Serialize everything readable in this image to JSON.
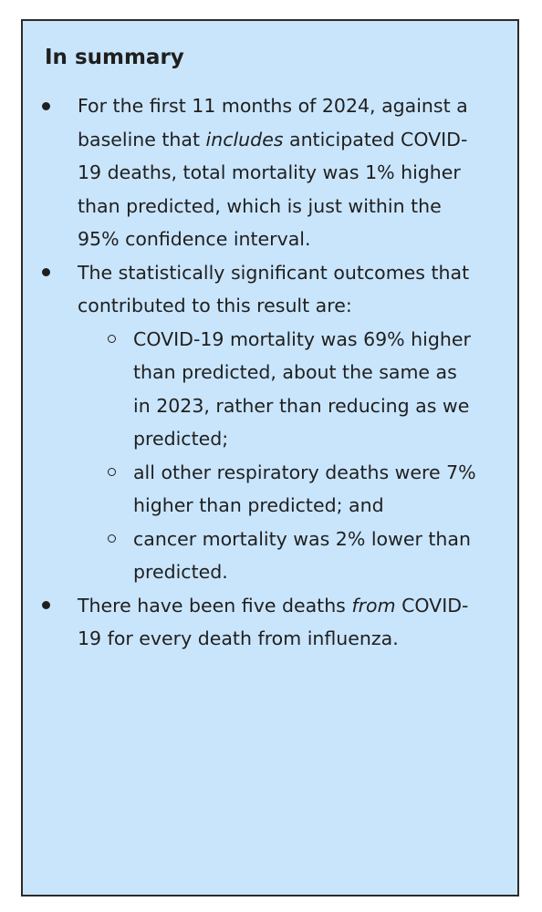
{
  "summary": {
    "title": "In summary",
    "bullets": [
      {
        "before": "For the first 11 months of 2024, against a baseline that ",
        "emphasis": "includes",
        "after": " anticipated COVID-19 deaths, total mortality was 1% higher than predicted, which is just within the 95% confidence interval."
      },
      {
        "text": "The statistically significant outcomes that contributed to this result are:",
        "sub_items": [
          "COVID-19 mortality was 69% higher than predicted, about the same as in 2023, rather than reducing as we predicted;",
          "all other respiratory deaths were 7% higher than predicted; and",
          "cancer mortality was 2% lower than predicted."
        ]
      },
      {
        "before": "There have been five deaths ",
        "emphasis": "from",
        "after": " COVID-19 for every death from influenza."
      }
    ]
  }
}
